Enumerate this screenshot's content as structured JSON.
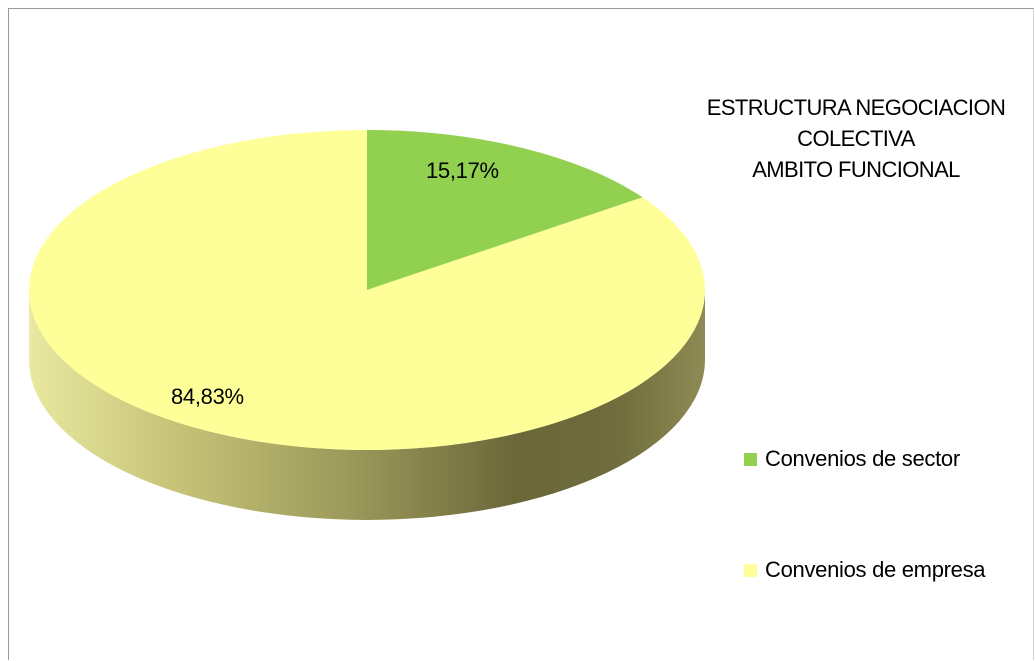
{
  "chart_data": {
    "type": "pie",
    "title": [
      "ESTRUCTURA NEGOCIACION",
      "COLECTIVA",
      "AMBITO FUNCIONAL"
    ],
    "categories": [
      "Convenios de sector",
      "Convenios de empresa"
    ],
    "values": [
      15.17,
      84.83
    ],
    "data_labels": [
      "15,17%",
      "84,83%"
    ],
    "colors": [
      "#92d050",
      "#ffff99"
    ],
    "legend_position": "right",
    "style": "3d"
  }
}
